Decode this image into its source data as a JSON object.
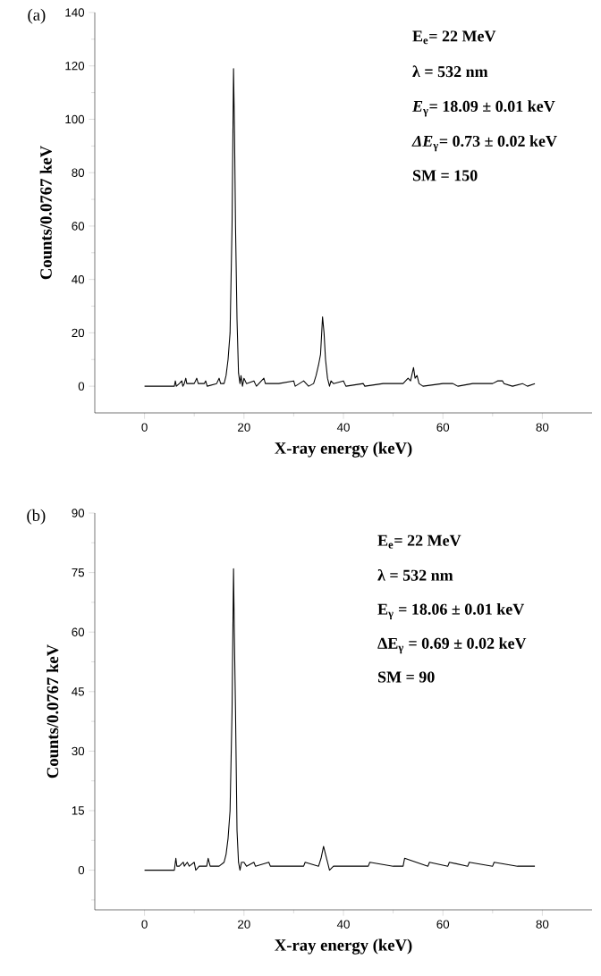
{
  "chart_data": [
    {
      "type": "line",
      "title": "(a)",
      "xlabel": "X-ray energy (keV)",
      "ylabel": "Counts/0.0767 keV",
      "color": "#000000",
      "xlim": [
        -10,
        90
      ],
      "xticks": [
        0,
        {
          "value": 10,
          "label": null
        },
        20,
        {
          "value": 30,
          "label": null
        },
        40,
        {
          "value": 50,
          "label": null
        },
        60,
        {
          "value": 70,
          "label": null
        },
        80
      ],
      "ylim": [
        -10,
        140
      ],
      "yticks": [
        0,
        {
          "value": 10,
          "label": null
        },
        20,
        {
          "value": 30,
          "label": null
        },
        40,
        {
          "value": 50,
          "label": null
        },
        60,
        {
          "value": 70,
          "label": null
        },
        80,
        {
          "value": 90,
          "label": null
        },
        100,
        {
          "value": 110,
          "label": null
        },
        120,
        {
          "value": 130,
          "label": null
        },
        140
      ],
      "x": [
        0,
        6,
        6.2,
        6.4,
        7,
        7.5,
        7.7,
        8,
        8.3,
        8.5,
        10,
        10.5,
        10.8,
        12,
        12.3,
        12.6,
        14.5,
        15,
        15.3,
        16,
        16.4,
        16.8,
        17.2,
        17.6,
        17.9,
        18.1,
        18.3,
        18.6,
        18.9,
        19.2,
        19.4,
        19.7,
        20,
        20.5,
        22,
        22.5,
        24,
        24.3,
        27,
        30,
        30.3,
        32,
        33,
        34,
        34.5,
        35,
        35.4,
        35.8,
        36.1,
        36.4,
        36.8,
        37.2,
        37.5,
        38,
        40,
        40.5,
        44,
        44.3,
        48,
        50,
        52,
        53,
        53.5,
        54.1,
        54.4,
        54.8,
        55.2,
        56,
        60,
        62,
        63,
        66,
        70,
        71,
        72,
        72.3,
        74,
        76,
        77,
        78.5
      ],
      "values": [
        0,
        0,
        2,
        0,
        1,
        2,
        0,
        1,
        3,
        1,
        1,
        3,
        1,
        1,
        2,
        0,
        1,
        3,
        1,
        1,
        4,
        10,
        20,
        60,
        119,
        95,
        60,
        25,
        5,
        1,
        4,
        0,
        3,
        1,
        2,
        0,
        3,
        1,
        1,
        2,
        0,
        2,
        0,
        1,
        4,
        8,
        12,
        26,
        20,
        10,
        3,
        0,
        2,
        1,
        2,
        0,
        1,
        0,
        1,
        1,
        1,
        3,
        2,
        7,
        3,
        4,
        1,
        0,
        1,
        1,
        0,
        1,
        1,
        2,
        2,
        1,
        0,
        1,
        0,
        1
      ],
      "marker": "none",
      "line_style": "solid",
      "annotations": [
        "E$_{e}$= 22 MeV",
        "λ = 532 nm",
        "*E*$_{γ}$= 18.09 ± 0.01 keV",
        "*ΔE*$_{γ}$= 0.73 ± 0.02 keV",
        "SM = 150"
      ]
    },
    {
      "type": "line",
      "title": "(b)",
      "xlabel": "X-ray energy (keV)",
      "ylabel": "Counts/0.0767 keV",
      "color": "#000000",
      "xlim": [
        -10,
        90
      ],
      "xticks": [
        0,
        {
          "value": 10,
          "label": null
        },
        20,
        {
          "value": 30,
          "label": null
        },
        40,
        {
          "value": 50,
          "label": null
        },
        60,
        {
          "value": 70,
          "label": null
        },
        80
      ],
      "ylim": [
        -10,
        90
      ],
      "yticks": [
        {
          "value": -7.5,
          "label": null
        },
        0,
        {
          "value": 7.5,
          "label": null
        },
        15,
        {
          "value": 22.5,
          "label": null
        },
        30,
        {
          "value": 37.5,
          "label": null
        },
        45,
        {
          "value": 52.5,
          "label": null
        },
        60,
        {
          "value": 67.5,
          "label": null
        },
        75,
        {
          "value": 82.5,
          "label": null
        },
        90
      ],
      "x": [
        0,
        6,
        6.3,
        6.5,
        7,
        7.8,
        8,
        8.6,
        9,
        10,
        10.3,
        11,
        12.5,
        12.8,
        13.2,
        15,
        16,
        16.4,
        16.8,
        17.2,
        17.6,
        17.9,
        18.06,
        18.3,
        18.6,
        18.9,
        19.2,
        19.5,
        20,
        20.5,
        22,
        22.3,
        25,
        25.3,
        28,
        32,
        32.3,
        35,
        35.5,
        36,
        36.4,
        36.8,
        37.2,
        38,
        45,
        45.3,
        50,
        52,
        52.3,
        57,
        57.3,
        61,
        61.3,
        65,
        65.3,
        70,
        70.3,
        75,
        78.5
      ],
      "values": [
        0,
        0,
        3,
        1,
        1,
        2,
        1,
        2,
        1,
        2,
        0,
        1,
        1,
        3,
        1,
        1,
        2,
        4,
        8,
        15,
        40,
        76,
        60,
        40,
        10,
        2,
        0,
        2,
        2,
        1,
        2,
        1,
        2,
        1,
        1,
        1,
        2,
        1,
        3,
        6,
        4,
        2,
        0,
        1,
        1,
        2,
        1,
        1,
        3,
        1,
        2,
        1,
        2,
        1,
        2,
        1,
        2,
        1,
        1
      ],
      "marker": "none",
      "line_style": "solid",
      "annotations": [
        "E$_{e}$= 22 MeV",
        "λ = 532 nm",
        "E$_{γ}$ = 18.06 ± 0.01 keV",
        "ΔE$_{γ}$ = 0.69 ± 0.02 keV",
        "SM = 90"
      ]
    }
  ]
}
